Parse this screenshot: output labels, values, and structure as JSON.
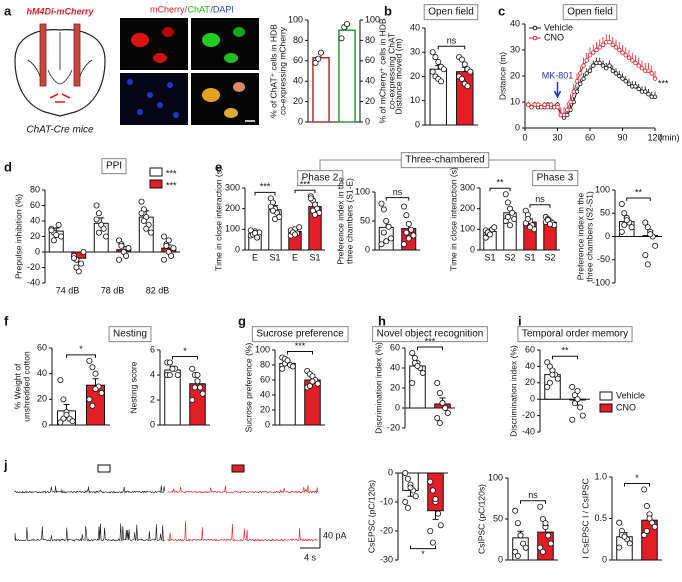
{
  "figure": {
    "letters": [
      "a",
      "b",
      "c",
      "d",
      "e",
      "f",
      "g",
      "h",
      "i",
      "j"
    ],
    "schematic_label": "hM4Di-mCherry",
    "mouse_label": "ChAT-Cre mice",
    "image_label": [
      "mCherry/",
      "ChAT",
      "/DAPI"
    ],
    "e_header": "Three-chambered",
    "j_scale": [
      "4 s",
      "40 pA"
    ]
  },
  "chart_data": [
    {
      "type": "bar",
      "ylabel": [
        "% of ChAT⁺ cells in HDB",
        "co-expressing mCherry"
      ],
      "y2label": [
        "% of mCherry⁺ cells in HDB",
        "co-expressing ChAT"
      ],
      "ylim": [
        0,
        100
      ],
      "yticks": [
        0,
        20,
        40,
        60,
        80,
        100
      ],
      "y2lim": [
        0,
        100
      ],
      "y2ticks": [
        0,
        20,
        40,
        60,
        80,
        100
      ],
      "values": [
        63,
        90
      ],
      "errors": [
        5,
        5
      ],
      "points": [
        [
          58,
          62,
          68
        ],
        [
          82,
          93,
          96
        ]
      ],
      "colors": [
        "#ffffff",
        "#ffffff"
      ],
      "edge_colors": [
        "#b0302a",
        "#2e9a3e"
      ],
      "bar_axes": [
        "y",
        "y2"
      ]
    },
    {
      "type": "bar",
      "title": "Open field",
      "ylabel": [
        "Distance moved (m)"
      ],
      "ylim": [
        0,
        40
      ],
      "yticks": [
        0,
        10,
        20,
        30,
        40
      ],
      "values": [
        23,
        22
      ],
      "errors": [
        1.5,
        1.8
      ],
      "points": [
        [
          30,
          28,
          26,
          24,
          23,
          22,
          20,
          19,
          18
        ],
        [
          28,
          27,
          25,
          23,
          22,
          20,
          19,
          17,
          16
        ]
      ],
      "colors": [
        "#ffffff",
        "#e41e26"
      ],
      "annotations": [
        {
          "text": "ns"
        }
      ]
    },
    {
      "type": "line",
      "title": "Open field",
      "ylabel": [
        "Distance (m)"
      ],
      "xlabel": "(min)",
      "xlim": [
        0,
        120
      ],
      "xticks": [
        0,
        30,
        60,
        90,
        120
      ],
      "ylim": [
        0,
        40
      ],
      "yticks": [
        0,
        10,
        20,
        30,
        40
      ],
      "x": [
        3,
        6,
        9,
        12,
        15,
        18,
        21,
        24,
        27,
        30,
        33,
        36,
        39,
        42,
        45,
        48,
        51,
        54,
        57,
        60,
        63,
        66,
        69,
        72,
        75,
        78,
        81,
        84,
        87,
        90,
        93,
        96,
        99,
        102,
        105,
        108,
        111,
        114,
        117,
        120
      ],
      "series": [
        {
          "name": "Vehicle",
          "color": "#111111",
          "values": [
            9,
            8,
            9,
            8,
            8,
            8,
            9,
            8,
            8,
            9,
            5,
            4,
            5,
            7,
            10,
            14,
            17,
            19,
            21,
            22,
            24,
            25,
            25,
            24,
            23,
            24,
            22,
            21,
            20,
            19,
            18,
            17,
            16,
            16,
            15,
            14,
            14,
            13,
            12,
            12
          ],
          "errors": [
            1,
            1,
            1,
            1,
            1,
            1,
            1,
            1,
            1,
            1,
            2,
            2,
            2,
            2,
            2,
            2,
            2,
            2,
            2,
            2,
            2,
            2,
            2,
            2,
            2,
            2,
            2,
            2,
            2,
            2,
            2,
            2,
            2,
            2,
            2,
            2,
            2,
            2,
            2,
            2
          ]
        },
        {
          "name": "CNO",
          "color": "#e41e26",
          "values": [
            9,
            8,
            9,
            9,
            8,
            9,
            8,
            9,
            8,
            8,
            5,
            5,
            7,
            10,
            14,
            18,
            21,
            24,
            26,
            28,
            29,
            30,
            31,
            32,
            33,
            33,
            32,
            31,
            30,
            29,
            28,
            27,
            26,
            25,
            24,
            23,
            22,
            22,
            21,
            19
          ],
          "errors": [
            1,
            1,
            1,
            1,
            1,
            1,
            1,
            1,
            1,
            1,
            3,
            3,
            3,
            3,
            3,
            3,
            3,
            3,
            3,
            3,
            3,
            3,
            3,
            3,
            3,
            3,
            3,
            3,
            3,
            3,
            3,
            3,
            3,
            3,
            3,
            3,
            3,
            3,
            3,
            3
          ]
        }
      ],
      "annotations": [
        {
          "text": "MK-801",
          "x": 30
        },
        {
          "text": "***"
        }
      ]
    },
    {
      "type": "bar",
      "title": "PPI",
      "ylabel": [
        "Prepulse inhibition (%)"
      ],
      "ylim": [
        -40,
        80
      ],
      "yticks": [
        -40,
        -20,
        0,
        20,
        40,
        60,
        80
      ],
      "groups": [
        "74 dB",
        "78 dB",
        "82 dB"
      ],
      "values": [
        27,
        -8,
        37,
        3,
        45,
        5
      ],
      "errors": [
        4,
        5,
        7,
        4,
        8,
        4
      ],
      "points": [
        [
          30,
          25,
          22,
          35,
          20,
          28,
          15
        ],
        [
          -5,
          -10,
          -25,
          -15,
          0,
          -8,
          -20
        ],
        [
          60,
          50,
          35,
          30,
          20,
          42,
          25
        ],
        [
          15,
          10,
          0,
          -5,
          5,
          -10,
          8
        ],
        [
          65,
          55,
          45,
          35,
          25,
          50,
          40,
          30
        ],
        [
          20,
          10,
          0,
          -5,
          5,
          -10,
          8,
          15
        ]
      ],
      "colors": [
        "#ffffff",
        "#e41e26",
        "#ffffff",
        "#e41e26",
        "#ffffff",
        "#e41e26"
      ],
      "legend": [
        {
          "color": "#ffffff"
        },
        {
          "color": "#e41e26"
        }
      ],
      "annotations": [
        {
          "text": "***"
        },
        {
          "text": "***"
        }
      ]
    },
    {
      "type": "bar",
      "title": "Phase 2",
      "ylabel": [
        "Time in close interaction (s)"
      ],
      "ylim": [
        0,
        300
      ],
      "yticks": [
        0,
        100,
        200,
        300
      ],
      "categories": [
        "E",
        "S1",
        "E",
        "S1"
      ],
      "values": [
        80,
        195,
        90,
        210
      ],
      "errors": [
        8,
        20,
        8,
        20
      ],
      "points": [
        [
          70,
          80,
          90,
          60,
          85,
          95,
          75,
          82
        ],
        [
          250,
          230,
          200,
          180,
          160,
          210,
          190,
          150
        ],
        [
          70,
          90,
          100,
          80,
          110,
          95,
          85,
          75
        ],
        [
          260,
          240,
          220,
          200,
          180,
          250,
          190,
          170
        ]
      ],
      "colors": [
        "#ffffff",
        "#ffffff",
        "#e41e26",
        "#e41e26"
      ],
      "annotations": [
        {
          "text": "***"
        },
        {
          "text": "***"
        }
      ]
    },
    {
      "type": "bar",
      "ylabel": [
        "Preference index in the",
        "three chambers (S1-E)"
      ],
      "ylim": [
        0,
        100
      ],
      "yticks": [
        0,
        50,
        100
      ],
      "values": [
        39,
        37
      ],
      "errors": [
        10,
        8
      ],
      "points": [
        [
          80,
          70,
          50,
          40,
          20,
          10,
          30,
          15
        ],
        [
          75,
          60,
          45,
          35,
          25,
          10,
          30,
          20
        ]
      ],
      "colors": [
        "#ffffff",
        "#e41e26"
      ],
      "annotations": [
        {
          "text": "ns"
        }
      ]
    },
    {
      "type": "bar",
      "title": "Phase 3",
      "ylabel": [
        "Time in close interaction (s)"
      ],
      "ylim": [
        0,
        300
      ],
      "yticks": [
        0,
        100,
        200,
        300
      ],
      "categories": [
        "S1",
        "S2",
        "S1",
        "S2"
      ],
      "values": [
        90,
        180,
        135,
        135
      ],
      "errors": [
        10,
        20,
        15,
        10
      ],
      "points": [
        [
          60,
          80,
          90,
          100,
          110,
          95,
          85,
          75
        ],
        [
          270,
          230,
          200,
          180,
          150,
          140,
          160,
          120
        ],
        [
          190,
          170,
          140,
          120,
          100,
          130,
          150,
          110
        ],
        [
          160,
          150,
          140,
          130,
          120,
          135,
          145,
          125
        ]
      ],
      "colors": [
        "#ffffff",
        "#ffffff",
        "#e41e26",
        "#e41e26"
      ],
      "annotations": [
        {
          "text": "**"
        },
        {
          "text": "ns"
        }
      ]
    },
    {
      "type": "bar",
      "ylabel": [
        "Preference index in the",
        "three chambers (S2-S1)"
      ],
      "ylim": [
        -100,
        100
      ],
      "yticks": [
        -100,
        -50,
        0,
        50,
        100
      ],
      "values": [
        32,
        2
      ],
      "errors": [
        8,
        10
      ],
      "points": [
        [
          70,
          50,
          40,
          30,
          20,
          10,
          25,
          35
        ],
        [
          30,
          20,
          10,
          0,
          -20,
          -40,
          -60,
          5
        ]
      ],
      "colors": [
        "#ffffff",
        "#e41e26"
      ],
      "annotations": [
        {
          "text": "**"
        }
      ]
    },
    {
      "type": "bar",
      "title": "Nesting",
      "ylabel": [
        "% Weight of",
        "unshredded cotton"
      ],
      "ylim": [
        0,
        60
      ],
      "yticks": [
        0,
        20,
        40,
        60
      ],
      "values": [
        11,
        31
      ],
      "errors": [
        5,
        5
      ],
      "points": [
        [
          35,
          20,
          10,
          5,
          3,
          2,
          5,
          8
        ],
        [
          50,
          45,
          40,
          30,
          25,
          20,
          15,
          28
        ]
      ],
      "colors": [
        "#ffffff",
        "#e41e26"
      ],
      "annotations": [
        {
          "text": "*"
        }
      ]
    },
    {
      "type": "bar",
      "ylabel": [
        "Nesting score"
      ],
      "ylim": [
        0,
        6
      ],
      "yticks": [
        0,
        2,
        4,
        6
      ],
      "values": [
        4.4,
        3.3
      ],
      "errors": [
        0.3,
        0.3
      ],
      "points": [
        [
          5,
          5,
          4.5,
          4.5,
          4,
          4,
          4,
          4.5
        ],
        [
          4.5,
          4,
          3.5,
          3,
          2.5,
          2,
          3,
          4
        ]
      ],
      "colors": [
        "#ffffff",
        "#e41e26"
      ],
      "annotations": [
        {
          "text": "*"
        }
      ]
    },
    {
      "type": "bar",
      "title": "Sucrose preference",
      "ylabel": [
        "Sucrose preference (%)"
      ],
      "ylim": [
        0,
        100
      ],
      "yticks": [
        0,
        20,
        40,
        60,
        80,
        100
      ],
      "values": [
        82,
        60
      ],
      "errors": [
        3,
        3
      ],
      "points": [
        [
          90,
          88,
          85,
          80,
          78,
          75,
          82,
          86
        ],
        [
          72,
          68,
          65,
          60,
          55,
          50,
          52,
          58
        ]
      ],
      "colors": [
        "#ffffff",
        "#e41e26"
      ],
      "annotations": [
        {
          "text": "***"
        }
      ]
    },
    {
      "type": "bar",
      "title": "Novel object recognition",
      "ylabel": [
        "Discrimination index (%)"
      ],
      "ylim": [
        -20,
        60
      ],
      "yticks": [
        -20,
        0,
        20,
        40,
        60
      ],
      "values": [
        42,
        4
      ],
      "errors": [
        4,
        6
      ],
      "points": [
        [
          55,
          50,
          45,
          40,
          35,
          25,
          45,
          42
        ],
        [
          25,
          15,
          5,
          0,
          -5,
          -10,
          -15,
          5
        ]
      ],
      "colors": [
        "#ffffff",
        "#e41e26"
      ],
      "annotations": [
        {
          "text": "***"
        }
      ]
    },
    {
      "type": "bar",
      "title": "Temporal order memory",
      "ylabel": [
        "Discrimination index (%)"
      ],
      "ylim": [
        -40,
        60
      ],
      "yticks": [
        -40,
        -20,
        0,
        20,
        40,
        60
      ],
      "values": [
        30,
        -1
      ],
      "errors": [
        6,
        6
      ],
      "points": [
        [
          45,
          40,
          35,
          30,
          25,
          15,
          20,
          30
        ],
        [
          15,
          5,
          0,
          -10,
          -20,
          -25,
          -5,
          10
        ]
      ],
      "colors": [
        "#ffffff",
        "#e41e26"
      ],
      "annotations": [
        {
          "text": "**"
        }
      ],
      "legend": [
        {
          "name": "Vehicle",
          "color": "#ffffff"
        },
        {
          "name": "CNO",
          "color": "#e41e26"
        }
      ]
    },
    {
      "type": "bar",
      "ylabel": [
        "CsEPSC (pC/120s)"
      ],
      "ylim": [
        -30,
        0
      ],
      "yticks": [
        -30,
        -20,
        -10,
        0
      ],
      "values": [
        -6,
        -13
      ],
      "errors": [
        2,
        3
      ],
      "points": [
        [
          0,
          -2,
          -4,
          -6,
          -8,
          -10,
          -12,
          -5
        ],
        [
          -3,
          -6,
          -10,
          -14,
          -18,
          -20,
          -24,
          -9
        ]
      ],
      "colors": [
        "#ffffff",
        "#e41e26"
      ],
      "annotations": [
        {
          "text": "*"
        }
      ]
    },
    {
      "type": "bar",
      "ylabel": [
        "CsIPSC (pC/120s)"
      ],
      "ylim": [
        0,
        100
      ],
      "yticks": [
        0,
        50,
        100
      ],
      "values": [
        27,
        34
      ],
      "errors": [
        8,
        8
      ],
      "points": [
        [
          60,
          45,
          30,
          20,
          15,
          10,
          5,
          30
        ],
        [
          65,
          50,
          40,
          30,
          20,
          15,
          10,
          45
        ]
      ],
      "colors": [
        "#ffffff",
        "#e41e26"
      ],
      "annotations": [
        {
          "text": "ns"
        }
      ]
    },
    {
      "type": "bar",
      "ylabel": [
        "I CsEPSC I / CsIPSC"
      ],
      "ylim": [
        0,
        1
      ],
      "yticks": [
        0,
        0.5,
        {
          "value": 1,
          "label": "1.0"
        }
      ],
      "values": [
        0.28,
        0.48
      ],
      "errors": [
        0.05,
        0.06
      ],
      "points": [
        [
          0.45,
          0.35,
          0.3,
          0.25,
          0.2,
          0.15,
          0.3,
          0.28
        ],
        [
          0.85,
          0.65,
          0.55,
          0.45,
          0.4,
          0.3,
          0.35,
          0.5
        ]
      ],
      "colors": [
        "#ffffff",
        "#e41e26"
      ],
      "annotations": [
        {
          "text": "*"
        }
      ]
    }
  ]
}
